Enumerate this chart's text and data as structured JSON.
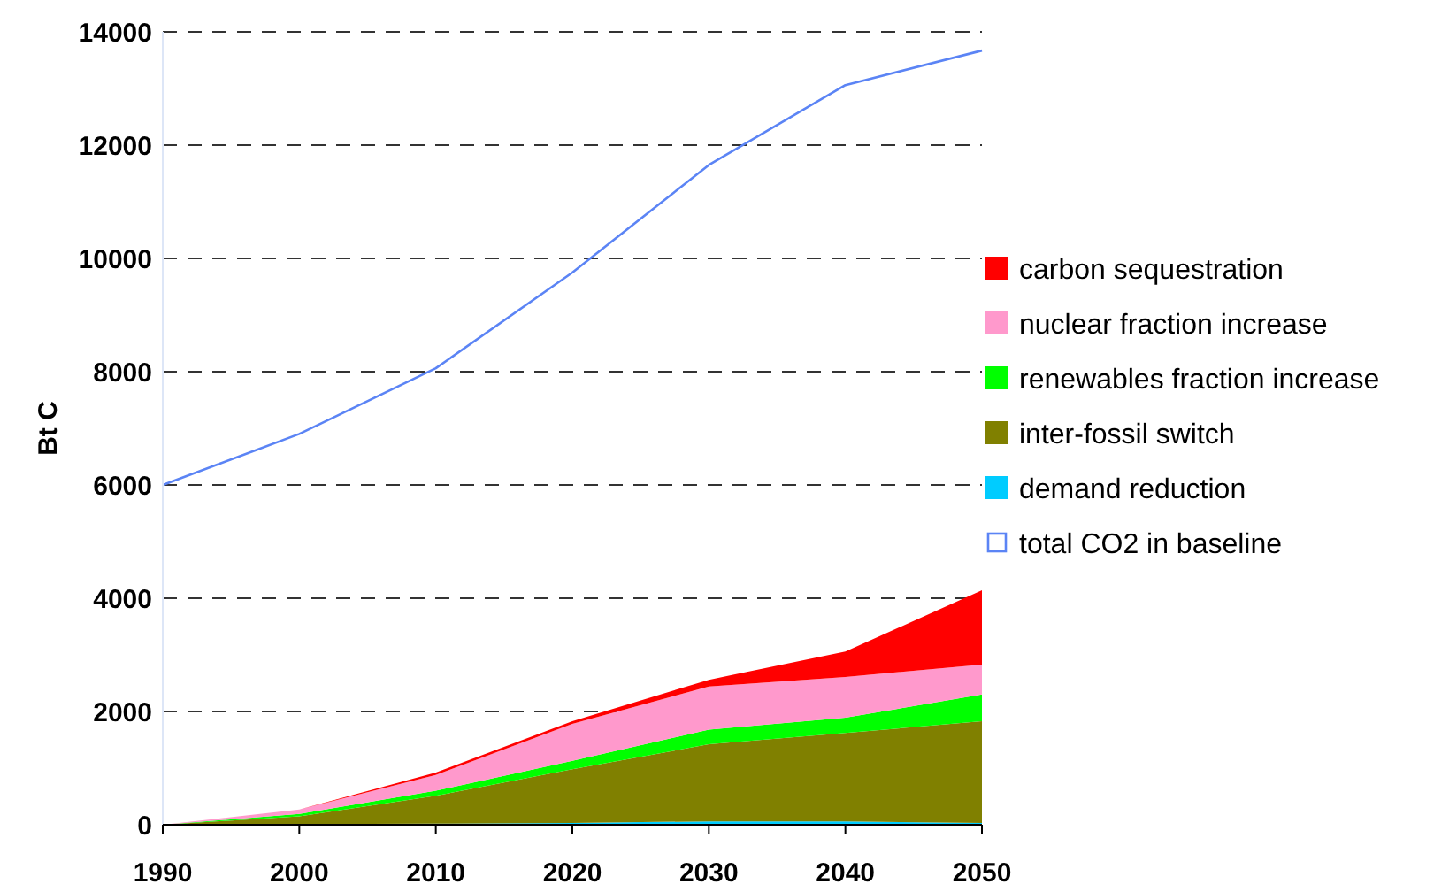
{
  "chart_data": {
    "type": "area",
    "stacked": true,
    "ylabel": "Bt C",
    "x": [
      1990,
      2000,
      2010,
      2020,
      2030,
      2040,
      2050
    ],
    "xlim": [
      1990,
      2050
    ],
    "xticks": [
      1990,
      2000,
      2010,
      2020,
      2030,
      2040,
      2050
    ],
    "ylim": [
      0,
      14000
    ],
    "yticks": [
      0,
      2000,
      4000,
      6000,
      8000,
      10000,
      12000,
      14000
    ],
    "grid": "y",
    "legend": "right",
    "series": [
      {
        "name": "demand reduction",
        "color": "#00ccff",
        "values": [
          0,
          10,
          20,
          30,
          60,
          60,
          30
        ]
      },
      {
        "name": "inter-fossil switch",
        "color": "#808000",
        "values": [
          0,
          140,
          490,
          950,
          1360,
          1560,
          1800
        ]
      },
      {
        "name": "renewables fraction increase",
        "color": "#00ff00",
        "values": [
          0,
          40,
          90,
          150,
          260,
          270,
          470
        ]
      },
      {
        "name": "nuclear fraction increase",
        "color": "#ff99cc",
        "values": [
          0,
          80,
          280,
          650,
          760,
          720,
          530
        ]
      },
      {
        "name": "carbon sequestration",
        "color": "#ff0000",
        "values": [
          0,
          0,
          40,
          50,
          120,
          450,
          1310
        ]
      },
      {
        "name": "total CO2 in baseline",
        "type": "line",
        "color": "#5b84f5",
        "values": [
          6000,
          6900,
          8060,
          9750,
          11650,
          13060,
          13670
        ]
      }
    ]
  }
}
